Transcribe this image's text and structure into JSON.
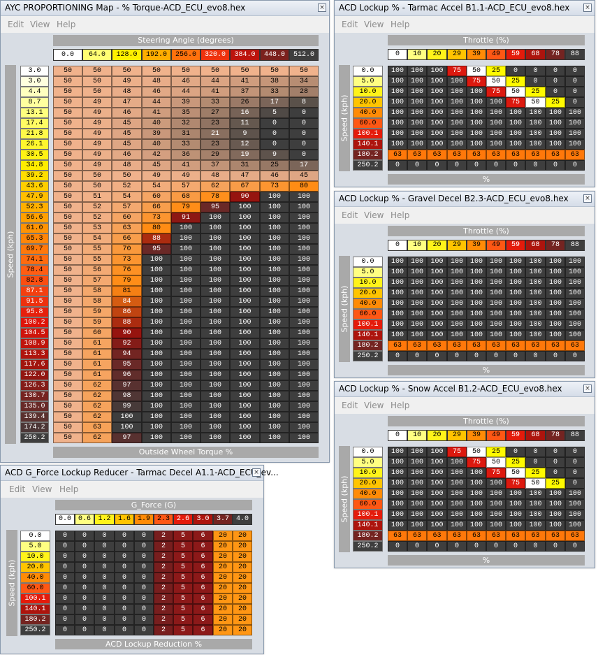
{
  "windows": [
    {
      "id": "ayc",
      "title": "AYC PROPORTIONING Map - % Torque-ACD_ECU_evo8.hex",
      "menu": [
        "Edit",
        "View",
        "Help"
      ],
      "x_label": "Steering Angle (degrees)",
      "y_label": "Speed (kph)",
      "value_label": "Outside Wheel Torque %",
      "x_axis": [
        "0.0",
        "64.0",
        "128.0",
        "192.0",
        "256.0",
        "320.0",
        "384.0",
        "448.0",
        "512.0"
      ],
      "y_axis": [
        "3.0",
        "3.0",
        "4.4",
        "8.7",
        "13.1",
        "17.4",
        "21.8",
        "26.1",
        "30.5",
        "34.8",
        "39.2",
        "43.6",
        "47.9",
        "52.3",
        "56.6",
        "61.0",
        "65.3",
        "69.7",
        "74.1",
        "78.4",
        "82.8",
        "87.1",
        "91.5",
        "95.8",
        "100.2",
        "104.5",
        "108.9",
        "113.3",
        "117.6",
        "122.0",
        "126.3",
        "130.7",
        "135.0",
        "139.4",
        "174.2",
        "250.2"
      ],
      "rows": [
        [
          "50",
          "50",
          "50",
          "50",
          "50",
          "50",
          "50",
          "50",
          "50"
        ],
        [
          "50",
          "50",
          "49",
          "48",
          "46",
          "44",
          "41",
          "38",
          "34"
        ],
        [
          "50",
          "50",
          "48",
          "46",
          "44",
          "41",
          "37",
          "33",
          "28"
        ],
        [
          "50",
          "49",
          "47",
          "44",
          "39",
          "33",
          "26",
          "17",
          "8"
        ],
        [
          "50",
          "49",
          "46",
          "41",
          "35",
          "27",
          "16",
          "5",
          "0"
        ],
        [
          "50",
          "49",
          "45",
          "40",
          "32",
          "23",
          "11",
          "0",
          "0"
        ],
        [
          "50",
          "49",
          "45",
          "39",
          "31",
          "21",
          "9",
          "0",
          "0"
        ],
        [
          "50",
          "49",
          "45",
          "40",
          "33",
          "23",
          "12",
          "0",
          "0"
        ],
        [
          "50",
          "49",
          "46",
          "42",
          "36",
          "29",
          "19",
          "9",
          "0"
        ],
        [
          "50",
          "49",
          "48",
          "45",
          "41",
          "37",
          "31",
          "25",
          "17"
        ],
        [
          "50",
          "50",
          "50",
          "49",
          "49",
          "48",
          "47",
          "46",
          "45"
        ],
        [
          "50",
          "50",
          "52",
          "54",
          "57",
          "62",
          "67",
          "73",
          "80"
        ],
        [
          "50",
          "51",
          "54",
          "60",
          "68",
          "78",
          "90",
          "100",
          "100"
        ],
        [
          "50",
          "52",
          "57",
          "66",
          "79",
          "95",
          "100",
          "100",
          "100"
        ],
        [
          "50",
          "52",
          "60",
          "73",
          "91",
          "100",
          "100",
          "100",
          "100"
        ],
        [
          "50",
          "53",
          "63",
          "80",
          "100",
          "100",
          "100",
          "100",
          "100"
        ],
        [
          "50",
          "54",
          "66",
          "88",
          "100",
          "100",
          "100",
          "100",
          "100"
        ],
        [
          "50",
          "55",
          "70",
          "95",
          "100",
          "100",
          "100",
          "100",
          "100"
        ],
        [
          "50",
          "55",
          "73",
          "100",
          "100",
          "100",
          "100",
          "100",
          "100"
        ],
        [
          "50",
          "56",
          "76",
          "100",
          "100",
          "100",
          "100",
          "100",
          "100"
        ],
        [
          "50",
          "57",
          "79",
          "100",
          "100",
          "100",
          "100",
          "100",
          "100"
        ],
        [
          "50",
          "58",
          "81",
          "100",
          "100",
          "100",
          "100",
          "100",
          "100"
        ],
        [
          "50",
          "58",
          "84",
          "100",
          "100",
          "100",
          "100",
          "100",
          "100"
        ],
        [
          "50",
          "59",
          "86",
          "100",
          "100",
          "100",
          "100",
          "100",
          "100"
        ],
        [
          "50",
          "59",
          "88",
          "100",
          "100",
          "100",
          "100",
          "100",
          "100"
        ],
        [
          "50",
          "60",
          "90",
          "100",
          "100",
          "100",
          "100",
          "100",
          "100"
        ],
        [
          "50",
          "61",
          "92",
          "100",
          "100",
          "100",
          "100",
          "100",
          "100"
        ],
        [
          "50",
          "61",
          "94",
          "100",
          "100",
          "100",
          "100",
          "100",
          "100"
        ],
        [
          "50",
          "61",
          "95",
          "100",
          "100",
          "100",
          "100",
          "100",
          "100"
        ],
        [
          "50",
          "61",
          "96",
          "100",
          "100",
          "100",
          "100",
          "100",
          "100"
        ],
        [
          "50",
          "62",
          "97",
          "100",
          "100",
          "100",
          "100",
          "100",
          "100"
        ],
        [
          "50",
          "62",
          "98",
          "100",
          "100",
          "100",
          "100",
          "100",
          "100"
        ],
        [
          "50",
          "62",
          "99",
          "100",
          "100",
          "100",
          "100",
          "100",
          "100"
        ],
        [
          "50",
          "62",
          "100",
          "100",
          "100",
          "100",
          "100",
          "100",
          "100"
        ],
        [
          "50",
          "63",
          "100",
          "100",
          "100",
          "100",
          "100",
          "100",
          "100"
        ],
        [
          "50",
          "62",
          "97",
          "100",
          "100",
          "100",
          "100",
          "100",
          "100"
        ]
      ]
    },
    {
      "id": "tarmac",
      "title": "ACD Lockup % - Tarmac Accel B1.1-ACD_ECU_evo8.hex",
      "menu": [
        "Edit",
        "View",
        "Help"
      ],
      "x_label": "Throttle (%)",
      "y_label": "Speed (kph)",
      "value_label": "%",
      "x_axis": [
        "0",
        "10",
        "20",
        "29",
        "39",
        "49",
        "59",
        "68",
        "78",
        "88"
      ],
      "y_axis": [
        "0.0",
        "5.0",
        "10.0",
        "20.0",
        "40.0",
        "60.0",
        "100.1",
        "140.1",
        "180.2",
        "250.2"
      ],
      "rows": [
        [
          "100",
          "100",
          "100",
          "75",
          "50",
          "25",
          "0",
          "0",
          "0",
          "0"
        ],
        [
          "100",
          "100",
          "100",
          "100",
          "75",
          "50",
          "25",
          "0",
          "0",
          "0"
        ],
        [
          "100",
          "100",
          "100",
          "100",
          "100",
          "75",
          "50",
          "25",
          "0",
          "0"
        ],
        [
          "100",
          "100",
          "100",
          "100",
          "100",
          "100",
          "75",
          "50",
          "25",
          "0"
        ],
        [
          "100",
          "100",
          "100",
          "100",
          "100",
          "100",
          "100",
          "100",
          "100",
          "100"
        ],
        [
          "100",
          "100",
          "100",
          "100",
          "100",
          "100",
          "100",
          "100",
          "100",
          "100"
        ],
        [
          "100",
          "100",
          "100",
          "100",
          "100",
          "100",
          "100",
          "100",
          "100",
          "100"
        ],
        [
          "100",
          "100",
          "100",
          "100",
          "100",
          "100",
          "100",
          "100",
          "100",
          "100"
        ],
        [
          "63",
          "63",
          "63",
          "63",
          "63",
          "63",
          "63",
          "63",
          "63",
          "63"
        ],
        [
          "0",
          "0",
          "0",
          "0",
          "0",
          "0",
          "0",
          "0",
          "0",
          "0"
        ]
      ]
    },
    {
      "id": "gravel",
      "title": "ACD Lockup % - Gravel Decel B2.3-ACD_ECU_evo8.hex",
      "menu": [
        "Edit",
        "View",
        "Help"
      ],
      "x_label": "Throttle (%)",
      "y_label": "Speed (kph)",
      "value_label": "%",
      "x_axis": [
        "0",
        "10",
        "20",
        "29",
        "39",
        "49",
        "59",
        "68",
        "78",
        "88"
      ],
      "y_axis": [
        "0.0",
        "5.0",
        "10.0",
        "20.0",
        "40.0",
        "60.0",
        "100.1",
        "140.1",
        "180.2",
        "250.2"
      ],
      "rows": [
        [
          "100",
          "100",
          "100",
          "100",
          "100",
          "100",
          "100",
          "100",
          "100",
          "100"
        ],
        [
          "100",
          "100",
          "100",
          "100",
          "100",
          "100",
          "100",
          "100",
          "100",
          "100"
        ],
        [
          "100",
          "100",
          "100",
          "100",
          "100",
          "100",
          "100",
          "100",
          "100",
          "100"
        ],
        [
          "100",
          "100",
          "100",
          "100",
          "100",
          "100",
          "100",
          "100",
          "100",
          "100"
        ],
        [
          "100",
          "100",
          "100",
          "100",
          "100",
          "100",
          "100",
          "100",
          "100",
          "100"
        ],
        [
          "100",
          "100",
          "100",
          "100",
          "100",
          "100",
          "100",
          "100",
          "100",
          "100"
        ],
        [
          "100",
          "100",
          "100",
          "100",
          "100",
          "100",
          "100",
          "100",
          "100",
          "100"
        ],
        [
          "100",
          "100",
          "100",
          "100",
          "100",
          "100",
          "100",
          "100",
          "100",
          "100"
        ],
        [
          "63",
          "63",
          "63",
          "63",
          "63",
          "63",
          "63",
          "63",
          "63",
          "63"
        ],
        [
          "0",
          "0",
          "0",
          "0",
          "0",
          "0",
          "0",
          "0",
          "0",
          "0"
        ]
      ]
    },
    {
      "id": "snow",
      "title": "ACD Lockup % - Snow Accel B1.2-ACD_ECU_evo8.hex",
      "menu": [
        "Edit",
        "View",
        "Help"
      ],
      "x_label": "Throttle (%)",
      "y_label": "Speed (kph)",
      "value_label": "%",
      "x_axis": [
        "0",
        "10",
        "20",
        "29",
        "39",
        "49",
        "59",
        "68",
        "78",
        "88"
      ],
      "y_axis": [
        "0.0",
        "5.0",
        "10.0",
        "20.0",
        "40.0",
        "60.0",
        "100.1",
        "140.1",
        "180.2",
        "250.2"
      ],
      "rows": [
        [
          "100",
          "100",
          "100",
          "75",
          "50",
          "25",
          "0",
          "0",
          "0",
          "0"
        ],
        [
          "100",
          "100",
          "100",
          "100",
          "75",
          "50",
          "25",
          "0",
          "0",
          "0"
        ],
        [
          "100",
          "100",
          "100",
          "100",
          "100",
          "75",
          "50",
          "25",
          "0",
          "0"
        ],
        [
          "100",
          "100",
          "100",
          "100",
          "100",
          "100",
          "75",
          "50",
          "25",
          "0"
        ],
        [
          "100",
          "100",
          "100",
          "100",
          "100",
          "100",
          "100",
          "100",
          "100",
          "100"
        ],
        [
          "100",
          "100",
          "100",
          "100",
          "100",
          "100",
          "100",
          "100",
          "100",
          "100"
        ],
        [
          "100",
          "100",
          "100",
          "100",
          "100",
          "100",
          "100",
          "100",
          "100",
          "100"
        ],
        [
          "100",
          "100",
          "100",
          "100",
          "100",
          "100",
          "100",
          "100",
          "100",
          "100"
        ],
        [
          "63",
          "63",
          "63",
          "63",
          "63",
          "63",
          "63",
          "63",
          "63",
          "63"
        ],
        [
          "0",
          "0",
          "0",
          "0",
          "0",
          "0",
          "0",
          "0",
          "0",
          "0"
        ]
      ]
    },
    {
      "id": "gforce",
      "title": "ACD G_Force Lockup Reducer - Tarmac Decel A1.1-ACD_ECU_ev...",
      "menu": [
        "Edit",
        "View",
        "Help"
      ],
      "x_label": "G_Force (G)",
      "y_label": "Speed (kph)",
      "value_label": "ACD Lockup Reduction %",
      "x_axis": [
        "0.0",
        "0.6",
        "1.2",
        "1.6",
        "1.9",
        "2.3",
        "2.6",
        "3.0",
        "3.7",
        "4.0"
      ],
      "y_axis": [
        "0.0",
        "5.0",
        "10.0",
        "20.0",
        "40.0",
        "60.0",
        "100.1",
        "140.1",
        "180.2",
        "250.2"
      ],
      "rows": [
        [
          "0",
          "0",
          "0",
          "0",
          "0",
          "2",
          "5",
          "6",
          "20",
          "20"
        ],
        [
          "0",
          "0",
          "0",
          "0",
          "0",
          "2",
          "5",
          "6",
          "20",
          "20"
        ],
        [
          "0",
          "0",
          "0",
          "0",
          "0",
          "2",
          "5",
          "6",
          "20",
          "20"
        ],
        [
          "0",
          "0",
          "0",
          "0",
          "0",
          "2",
          "5",
          "6",
          "20",
          "20"
        ],
        [
          "0",
          "0",
          "0",
          "0",
          "0",
          "2",
          "5",
          "6",
          "20",
          "20"
        ],
        [
          "0",
          "0",
          "0",
          "0",
          "0",
          "2",
          "5",
          "6",
          "20",
          "20"
        ],
        [
          "0",
          "0",
          "0",
          "0",
          "0",
          "2",
          "5",
          "6",
          "20",
          "20"
        ],
        [
          "0",
          "0",
          "0",
          "0",
          "0",
          "2",
          "5",
          "6",
          "20",
          "20"
        ],
        [
          "0",
          "0",
          "0",
          "0",
          "0",
          "2",
          "5",
          "6",
          "20",
          "20"
        ],
        [
          "0",
          "0",
          "0",
          "0",
          "0",
          "2",
          "5",
          "6",
          "20",
          "20"
        ]
      ]
    }
  ]
}
